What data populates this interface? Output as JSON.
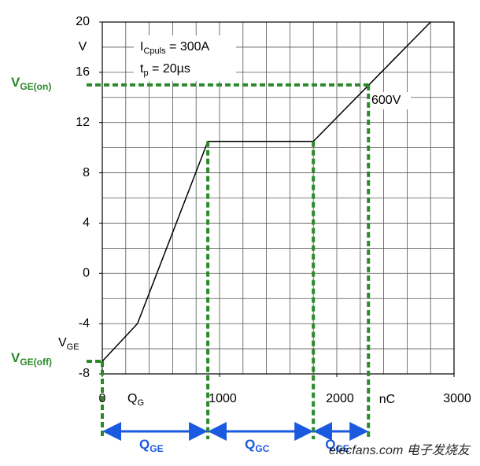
{
  "chart_data": {
    "type": "line",
    "x": [
      0,
      300,
      900,
      1800,
      2800
    ],
    "series": [
      {
        "name": "V_GE",
        "color": "#000000",
        "values": [
          -7,
          -4,
          10.5,
          10.5,
          20
        ]
      }
    ],
    "xlim": [
      0,
      3000
    ],
    "ylim": [
      -8,
      20
    ],
    "xticks": [
      0,
      1000,
      2000,
      3000
    ],
    "yticks": [
      -8,
      -4,
      0,
      4,
      8,
      12,
      16,
      20
    ],
    "xgrid": [
      200,
      400,
      600,
      800,
      1000,
      1200,
      1400,
      1600,
      1800,
      2000,
      2200,
      2400,
      2600,
      2800
    ],
    "ygrid": [
      -6,
      -4,
      -2,
      0,
      2,
      4,
      6,
      8,
      10,
      12,
      14,
      16,
      18
    ],
    "y_unit": "V",
    "x_unit": "nC",
    "annotations": {
      "current": {
        "base": "I",
        "sub": "Cpuls",
        "tail": " = 300A"
      },
      "pulse": {
        "base": "t",
        "sub": "p",
        "tail": " = 20µs"
      },
      "voltage": "600V",
      "curve_label": {
        "base": "V",
        "sub": "GE"
      },
      "charge_label": {
        "base": "Q",
        "sub": "G"
      }
    },
    "reference_lines": {
      "vge_on": {
        "value": 15,
        "label": {
          "base": "V",
          "sub": "GE(on)"
        }
      },
      "vge_off": {
        "value": -7,
        "label": {
          "base": "V",
          "sub": "GE(off)"
        }
      },
      "charge_marks": [
        0,
        900,
        1800,
        2270
      ],
      "charge_segments": [
        {
          "base": "Q",
          "sub": "GE"
        },
        {
          "base": "Q",
          "sub": "GC"
        },
        {
          "base": "Q",
          "sub": "GE"
        }
      ]
    },
    "watermark": "elecfans.com 电子发烧友"
  }
}
